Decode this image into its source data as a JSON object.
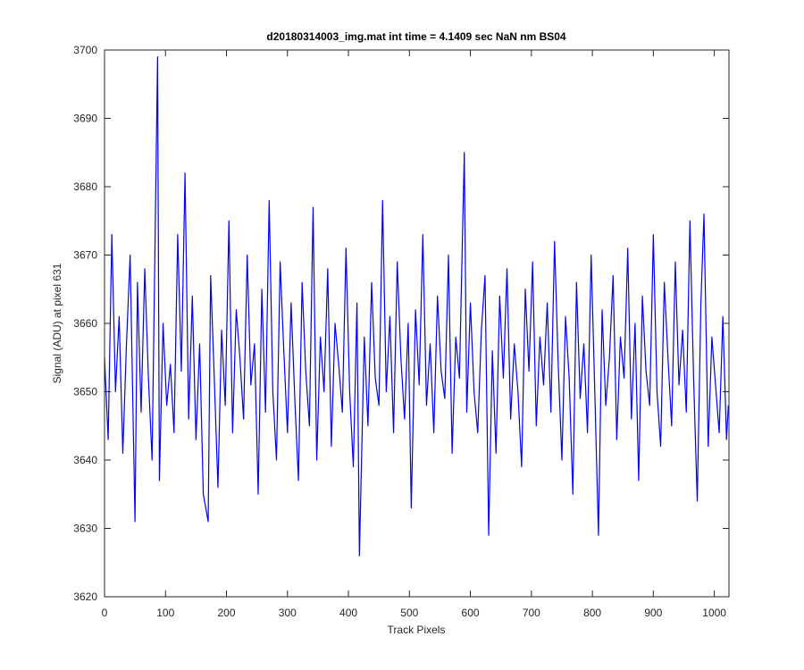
{
  "chart_data": {
    "type": "line",
    "title": "d20180314003_img.mat int time = 4.1409 sec  NaN nm BS04",
    "x_label": "Track Pixels",
    "y_label": "Signal (ADU) at pixel 631",
    "x": [
      0,
      6,
      12,
      18,
      24,
      30,
      36,
      42,
      50,
      54,
      60,
      66,
      72,
      78,
      87,
      90,
      96,
      102,
      108,
      114,
      120,
      126,
      132,
      138,
      144,
      150,
      156,
      162,
      170,
      174,
      180,
      186,
      192,
      198,
      204,
      210,
      216,
      222,
      228,
      234,
      240,
      246,
      252,
      258,
      264,
      270,
      276,
      282,
      288,
      294,
      300,
      306,
      312,
      318,
      324,
      330,
      336,
      342,
      348,
      354,
      360,
      366,
      372,
      378,
      384,
      390,
      396,
      402,
      408,
      414,
      418,
      426,
      432,
      438,
      444,
      450,
      456,
      462,
      468,
      474,
      480,
      486,
      492,
      498,
      503,
      510,
      516,
      522,
      528,
      534,
      540,
      546,
      552,
      558,
      564,
      570,
      576,
      582,
      590,
      594,
      600,
      606,
      612,
      618,
      624,
      630,
      636,
      642,
      648,
      654,
      660,
      666,
      672,
      678,
      684,
      690,
      696,
      702,
      708,
      714,
      720,
      726,
      732,
      738,
      744,
      750,
      756,
      762,
      768,
      774,
      780,
      786,
      792,
      798,
      804,
      810,
      816,
      822,
      828,
      834,
      840,
      846,
      852,
      858,
      864,
      870,
      876,
      882,
      888,
      894,
      900,
      906,
      912,
      918,
      924,
      930,
      936,
      942,
      948,
      954,
      960,
      966,
      972,
      978,
      983,
      990,
      996,
      1002,
      1008,
      1014,
      1020,
      1023
    ],
    "series": [
      {
        "name": "signal",
        "color": "#0000ff",
        "values": [
          3655,
          3643,
          3673,
          3650,
          3661,
          3641,
          3657,
          3670,
          3631,
          3666,
          3647,
          3668,
          3652,
          3640,
          3699,
          3637,
          3660,
          3648,
          3654,
          3644,
          3673,
          3653,
          3682,
          3646,
          3664,
          3643,
          3657,
          3635,
          3631,
          3667,
          3652,
          3636,
          3659,
          3648,
          3675,
          3644,
          3662,
          3655,
          3646,
          3670,
          3651,
          3657,
          3635,
          3665,
          3647,
          3678,
          3650,
          3640,
          3669,
          3656,
          3644,
          3663,
          3649,
          3637,
          3666,
          3653,
          3645,
          3677,
          3640,
          3658,
          3650,
          3668,
          3642,
          3660,
          3654,
          3647,
          3671,
          3650,
          3639,
          3663,
          3626,
          3658,
          3645,
          3666,
          3652,
          3648,
          3678,
          3650,
          3661,
          3644,
          3669,
          3655,
          3646,
          3660,
          3633,
          3662,
          3651,
          3673,
          3648,
          3657,
          3644,
          3664,
          3653,
          3649,
          3670,
          3641,
          3658,
          3652,
          3685,
          3647,
          3663,
          3650,
          3644,
          3659,
          3667,
          3629,
          3656,
          3641,
          3664,
          3652,
          3668,
          3646,
          3657,
          3650,
          3639,
          3665,
          3653,
          3669,
          3645,
          3658,
          3651,
          3663,
          3647,
          3672,
          3654,
          3640,
          3661,
          3652,
          3635,
          3666,
          3649,
          3657,
          3644,
          3670,
          3650,
          3629,
          3662,
          3648,
          3655,
          3667,
          3643,
          3658,
          3652,
          3671,
          3646,
          3660,
          3637,
          3664,
          3653,
          3648,
          3673,
          3650,
          3642,
          3666,
          3655,
          3645,
          3669,
          3651,
          3659,
          3647,
          3675,
          3652,
          3634,
          3663,
          3676,
          3642,
          3658,
          3651,
          3644,
          3661,
          3643,
          3648
        ]
      }
    ],
    "xlim": [
      0,
      1024
    ],
    "ylim": [
      3620,
      3700
    ],
    "xticks": [
      0,
      100,
      200,
      300,
      400,
      500,
      600,
      700,
      800,
      900,
      1000
    ],
    "yticks": [
      3620,
      3630,
      3640,
      3650,
      3660,
      3670,
      3680,
      3690,
      3700
    ]
  }
}
